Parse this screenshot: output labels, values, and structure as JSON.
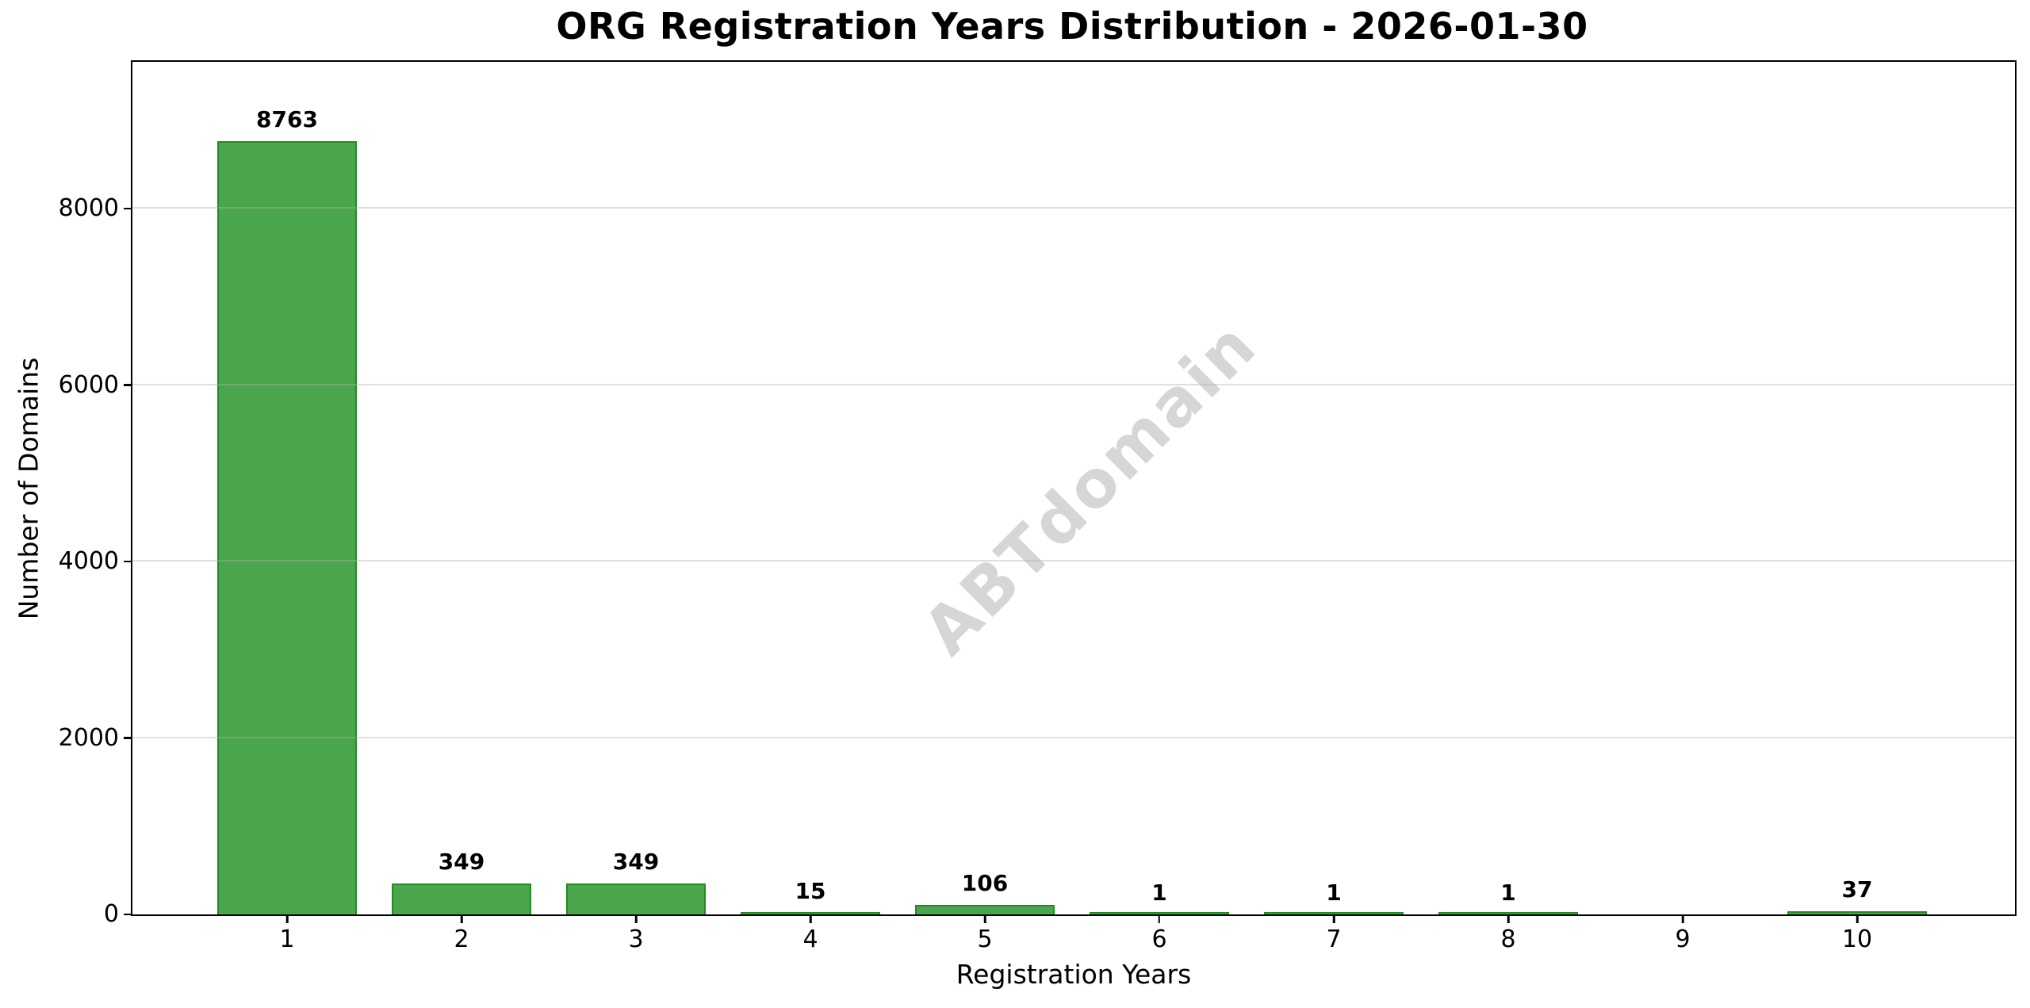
{
  "chart_data": {
    "type": "bar",
    "title": "ORG Registration Years Distribution - 2026-01-30",
    "xlabel": "Registration Years",
    "ylabel": "Number of Domains",
    "categories": [
      "1",
      "2",
      "3",
      "4",
      "5",
      "6",
      "7",
      "8",
      "9",
      "10"
    ],
    "values": [
      8763,
      349,
      349,
      15,
      106,
      1,
      1,
      1,
      0,
      37
    ],
    "bar_labels": [
      "8763",
      "349",
      "349",
      "15",
      "106",
      "1",
      "1",
      "1",
      "",
      "37"
    ],
    "yticks": [
      0,
      2000,
      4000,
      6000,
      8000
    ],
    "ylim": [
      0,
      9663
    ],
    "grid": "horizontal-light",
    "legend": "none",
    "watermark": {
      "text": "ABTdomain",
      "rotation_deg": -45
    },
    "colors": {
      "bar_fill": "#4aa64d",
      "bar_edge": "#228b22",
      "grid": "#b0b0b0",
      "spine": "#000000",
      "text": "#000000",
      "watermark": "#d6d6d6"
    }
  }
}
